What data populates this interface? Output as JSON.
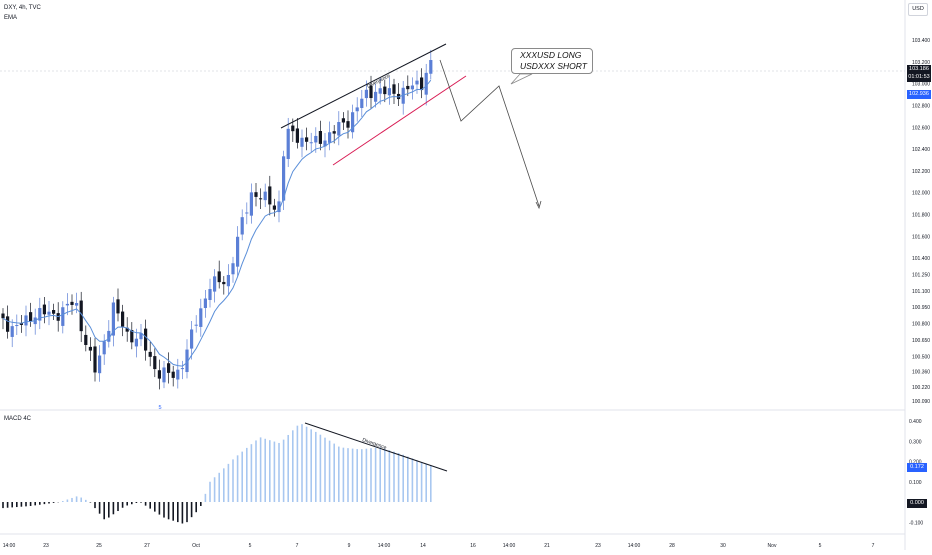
{
  "header": {
    "symbol_line": "DXY, 4h, TVC",
    "indicator_label": "EMA"
  },
  "currency_badge": "USD",
  "annotation": {
    "line1": "XXXUSD LONG",
    "line2": "USDXXX SHORT"
  },
  "divergence_label": "Divergence",
  "price_labels": {
    "last_price": "103.186",
    "countdown": "01:01:53",
    "ema_value": "102.936"
  },
  "macd": {
    "title": "MACD 4C",
    "last_value": "0.172",
    "zero_label": "0.000"
  },
  "day_marker": "5",
  "colors": {
    "up": "#5b7fd6",
    "down": "#131722",
    "ema": "#5b8fd9",
    "trendline": "#d81b53",
    "macd_bar": "#a8c7f0",
    "accent": "#2962ff"
  },
  "chart_data": [
    {
      "type": "candlestick",
      "title": "DXY, 4h, TVC",
      "price_axis_ticks": [
        103.4,
        103.2,
        103.0,
        102.8,
        102.6,
        102.4,
        102.2,
        102.0,
        101.8,
        101.6,
        101.4,
        101.25,
        101.1,
        100.95,
        100.8,
        100.65,
        100.5,
        100.36,
        100.22,
        100.09
      ],
      "time_axis_ticks": [
        "14:00",
        "23",
        "25",
        "27",
        "Oct",
        "5",
        "7",
        "9",
        "14:00",
        "14",
        "16",
        "14:00",
        "21",
        "23",
        "14:00",
        "28",
        "30",
        "Nov",
        "5",
        "7"
      ],
      "ema_last": 102.936,
      "last_close": 103.186
    },
    {
      "type": "bar",
      "title": "MACD 4C",
      "axis_ticks": [
        0.4,
        0.3,
        0.2,
        0.1,
        0.0,
        -0.1
      ],
      "last_value": 0.172
    }
  ]
}
